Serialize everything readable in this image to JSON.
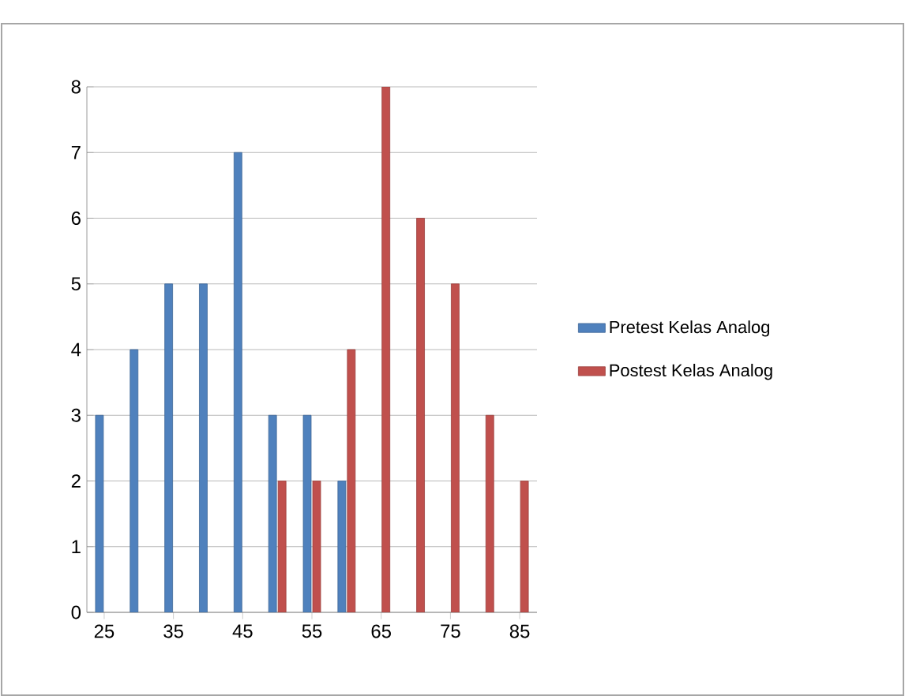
{
  "chart_data": {
    "type": "bar",
    "categories": [
      "25",
      null,
      "35",
      null,
      "45",
      null,
      "55",
      null,
      "65",
      null,
      "75",
      null,
      "85"
    ],
    "series": [
      {
        "name": "Pretest Kelas Analog",
        "color": "#4f81bd",
        "values": [
          3,
          4,
          5,
          5,
          7,
          3,
          3,
          2,
          null,
          null,
          null,
          null,
          null
        ]
      },
      {
        "name": "Postest Kelas Analog",
        "color": "#c0504d",
        "values": [
          null,
          null,
          null,
          null,
          null,
          2,
          2,
          4,
          8,
          6,
          5,
          3,
          2
        ]
      }
    ],
    "ylim": [
      0,
      8
    ],
    "yticks": [
      0,
      1,
      2,
      3,
      4,
      5,
      6,
      7,
      8
    ],
    "grid": "y",
    "legend": "right"
  }
}
